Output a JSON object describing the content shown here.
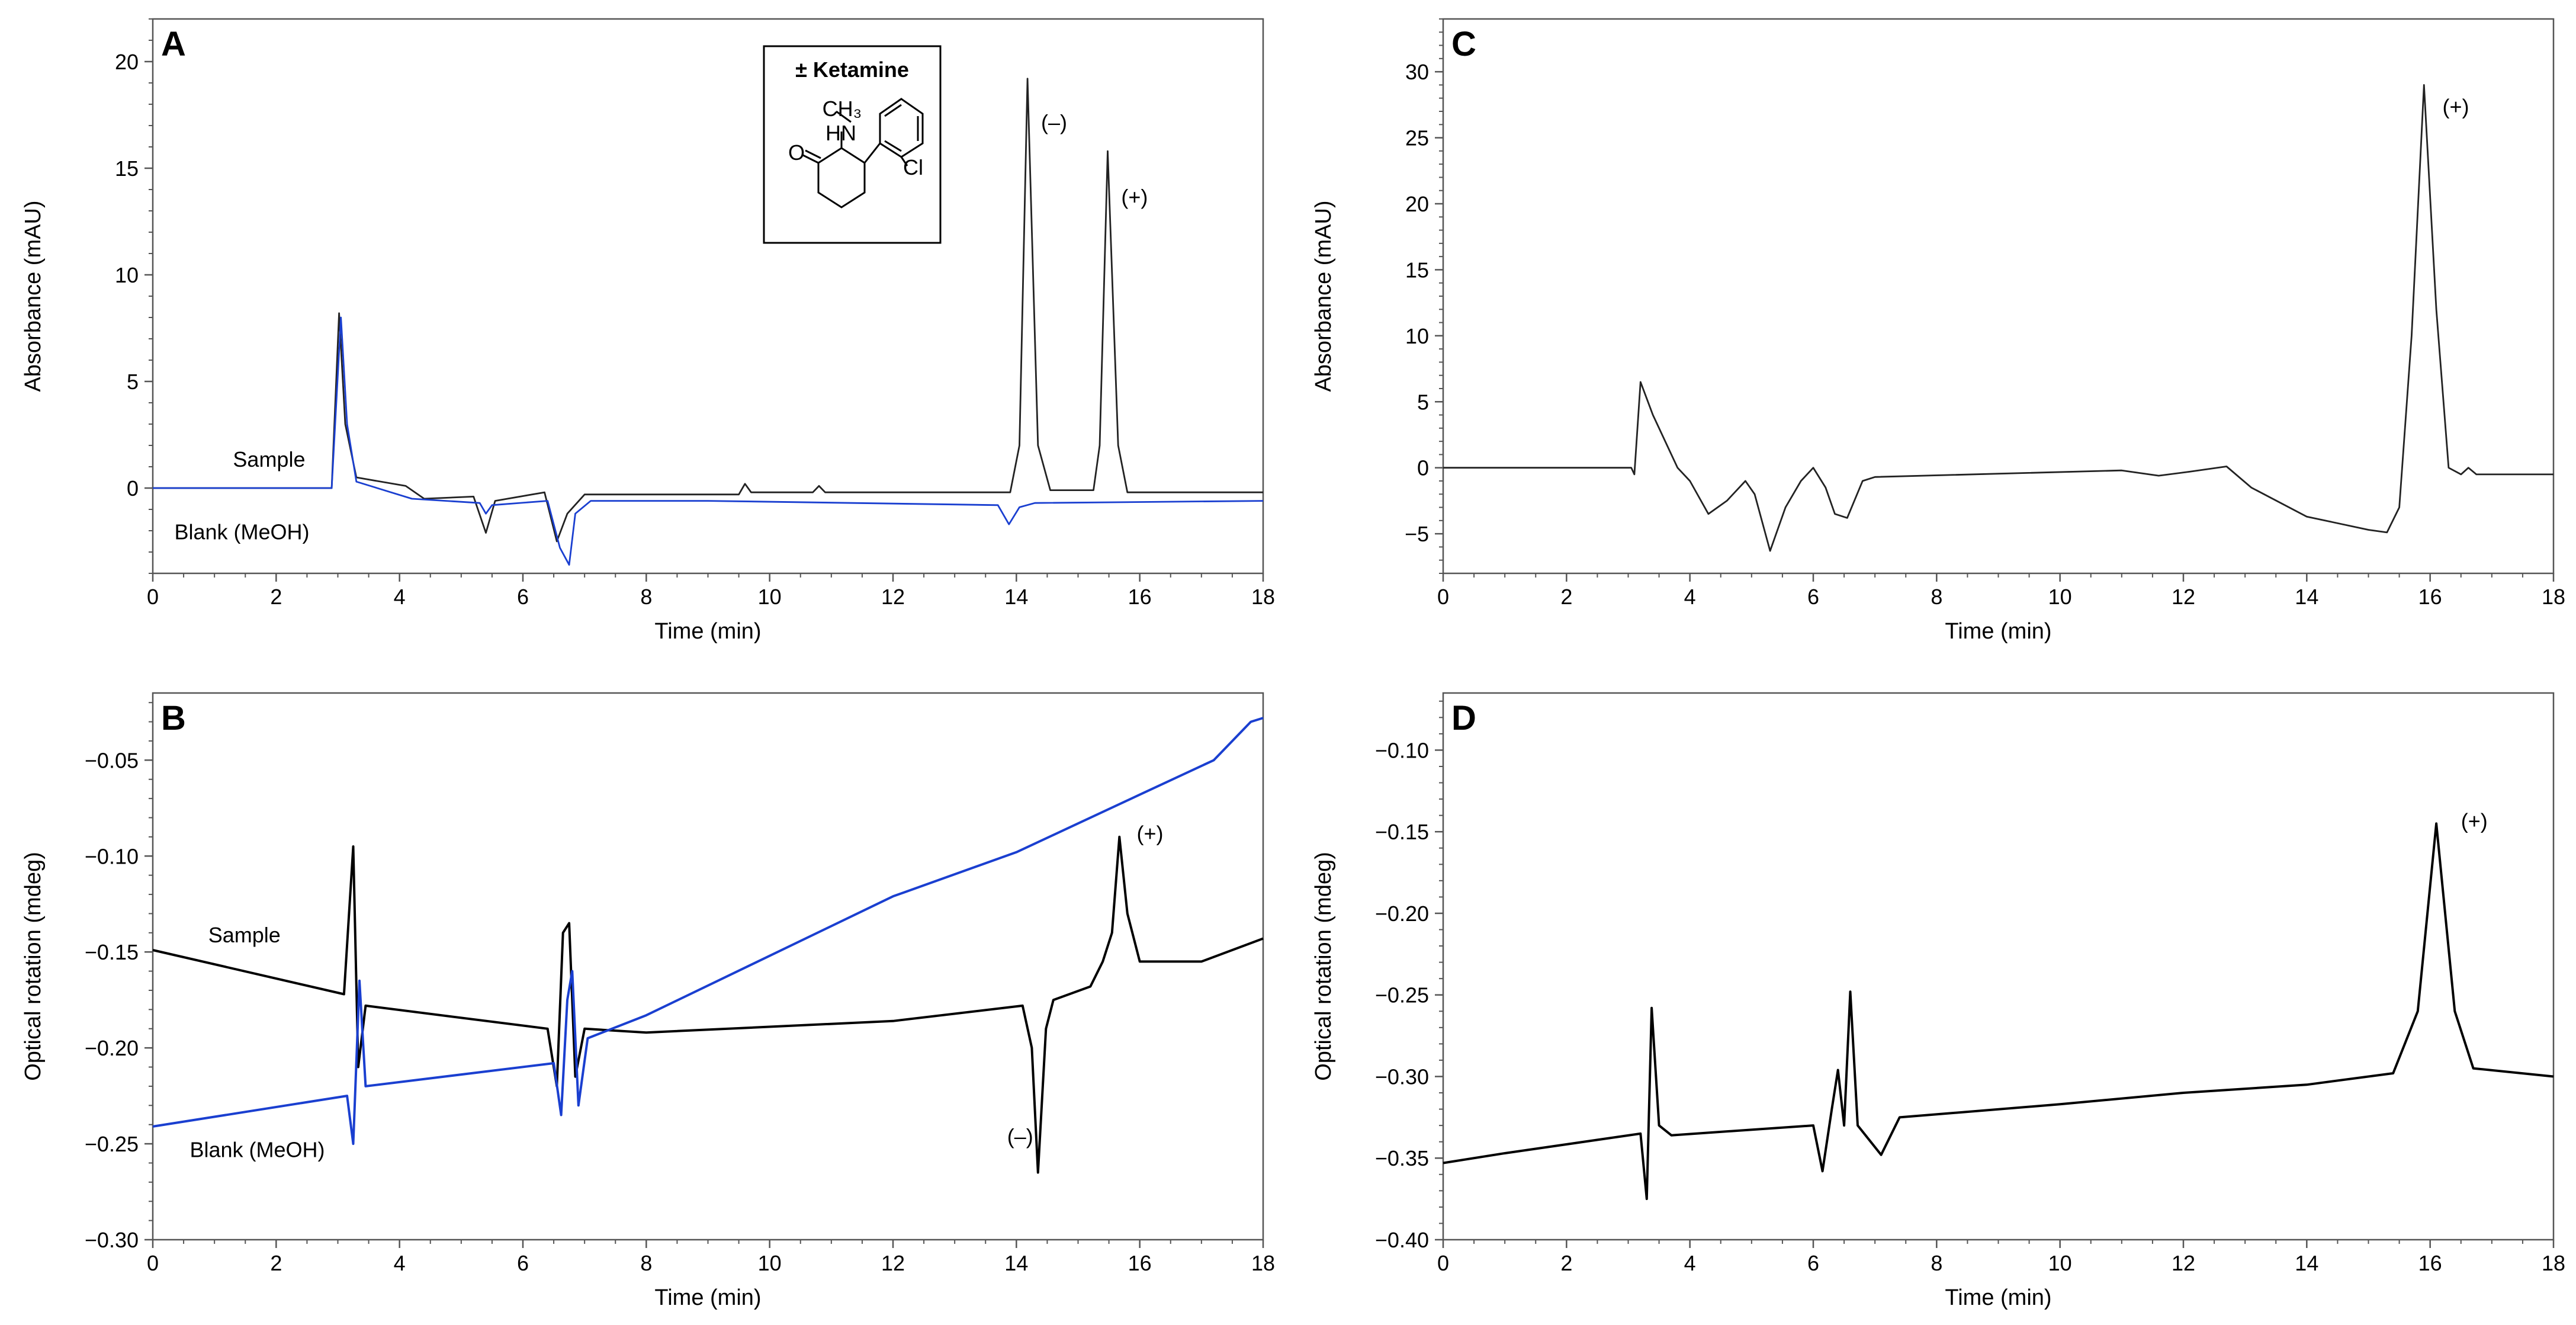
{
  "chart_data": [
    {
      "id": "A",
      "type": "line",
      "panel_label": "A",
      "xlabel": "Time (min)",
      "ylabel": "Absorbance (mAU)",
      "xlim": [
        0,
        18
      ],
      "ylim": [
        -4,
        22
      ],
      "xticks": [
        0,
        2,
        4,
        6,
        8,
        10,
        12,
        14,
        16,
        18
      ],
      "yticks": [
        0,
        5,
        10,
        15,
        20
      ],
      "series": [
        {
          "name": "Sample",
          "color": "#222222",
          "points": [
            [
              0,
              0
            ],
            [
              2.9,
              0
            ],
            [
              3.02,
              8.2
            ],
            [
              3.12,
              3
            ],
            [
              3.3,
              0.5
            ],
            [
              4.1,
              0.1
            ],
            [
              4.4,
              -0.5
            ],
            [
              5.2,
              -0.4
            ],
            [
              5.4,
              -2.1
            ],
            [
              5.55,
              -0.6
            ],
            [
              6.35,
              -0.2
            ],
            [
              6.55,
              -2.5
            ],
            [
              6.72,
              -1.2
            ],
            [
              7.0,
              -0.3
            ],
            [
              9.5,
              -0.3
            ],
            [
              9.6,
              0.2
            ],
            [
              9.7,
              -0.2
            ],
            [
              10.7,
              -0.2
            ],
            [
              10.8,
              0.1
            ],
            [
              10.9,
              -0.2
            ],
            [
              13.9,
              -0.2
            ],
            [
              14.05,
              2
            ],
            [
              14.18,
              19.2
            ],
            [
              14.35,
              2
            ],
            [
              14.55,
              -0.1
            ],
            [
              15.25,
              -0.1
            ],
            [
              15.35,
              2
            ],
            [
              15.48,
              15.8
            ],
            [
              15.65,
              2
            ],
            [
              15.8,
              -0.2
            ],
            [
              18,
              -0.2
            ]
          ]
        },
        {
          "name": "Blank (MeOH)",
          "color": "#1a3fd0",
          "points": [
            [
              0,
              0
            ],
            [
              2.9,
              0
            ],
            [
              3.05,
              8
            ],
            [
              3.15,
              3
            ],
            [
              3.3,
              0.3
            ],
            [
              4.2,
              -0.5
            ],
            [
              5.3,
              -0.7
            ],
            [
              5.4,
              -1.2
            ],
            [
              5.5,
              -0.8
            ],
            [
              6.4,
              -0.6
            ],
            [
              6.6,
              -2.8
            ],
            [
              6.75,
              -3.6
            ],
            [
              6.85,
              -1.2
            ],
            [
              7.1,
              -0.6
            ],
            [
              9,
              -0.6
            ],
            [
              13.7,
              -0.8
            ],
            [
              13.88,
              -1.7
            ],
            [
              14.05,
              -0.9
            ],
            [
              14.3,
              -0.7
            ],
            [
              18,
              -0.6
            ]
          ]
        }
      ],
      "annotations": [
        {
          "text": "Sample",
          "x": 1.3,
          "y": 1.0
        },
        {
          "text": "Blank (MeOH)",
          "x": 0.35,
          "y": -2.4
        },
        {
          "text": "(–)",
          "x": 14.4,
          "y": 16.8
        },
        {
          "text": "(+)",
          "x": 15.7,
          "y": 13.3
        }
      ],
      "inset_title": "± Ketamine",
      "structure_labels": [
        "HN",
        "CH₃",
        "Cl",
        "O"
      ]
    },
    {
      "id": "B",
      "type": "line",
      "panel_label": "B",
      "xlabel": "Time (min)",
      "ylabel": "Optical rotation (mdeg)",
      "xlim": [
        0,
        18
      ],
      "ylim": [
        -0.3,
        -0.015
      ],
      "xticks": [
        0,
        2,
        4,
        6,
        8,
        10,
        12,
        14,
        16,
        18
      ],
      "yticks": [
        -0.3,
        -0.25,
        -0.2,
        -0.15,
        -0.1,
        -0.05
      ],
      "series": [
        {
          "name": "Sample",
          "color": "#000000",
          "points": [
            [
              0,
              -0.149
            ],
            [
              3.1,
              -0.172
            ],
            [
              3.25,
              -0.095
            ],
            [
              3.33,
              -0.21
            ],
            [
              3.45,
              -0.178
            ],
            [
              6.4,
              -0.19
            ],
            [
              6.55,
              -0.22
            ],
            [
              6.65,
              -0.14
            ],
            [
              6.75,
              -0.135
            ],
            [
              6.85,
              -0.215
            ],
            [
              7.0,
              -0.19
            ],
            [
              8,
              -0.192
            ],
            [
              12,
              -0.186
            ],
            [
              14.1,
              -0.178
            ],
            [
              14.25,
              -0.2
            ],
            [
              14.35,
              -0.265
            ],
            [
              14.48,
              -0.19
            ],
            [
              14.6,
              -0.175
            ],
            [
              15.2,
              -0.168
            ],
            [
              15.4,
              -0.155
            ],
            [
              15.55,
              -0.14
            ],
            [
              15.67,
              -0.09
            ],
            [
              15.8,
              -0.13
            ],
            [
              16.0,
              -0.155
            ],
            [
              17,
              -0.155
            ],
            [
              18,
              -0.143
            ]
          ]
        },
        {
          "name": "Blank (MeOH)",
          "color": "#1a3fd0",
          "points": [
            [
              0,
              -0.241
            ],
            [
              3.15,
              -0.225
            ],
            [
              3.25,
              -0.25
            ],
            [
              3.35,
              -0.165
            ],
            [
              3.45,
              -0.22
            ],
            [
              6.5,
              -0.208
            ],
            [
              6.62,
              -0.235
            ],
            [
              6.72,
              -0.175
            ],
            [
              6.8,
              -0.16
            ],
            [
              6.9,
              -0.23
            ],
            [
              7.05,
              -0.195
            ],
            [
              8,
              -0.183
            ],
            [
              10,
              -0.152
            ],
            [
              12,
              -0.121
            ],
            [
              14,
              -0.098
            ],
            [
              16,
              -0.068
            ],
            [
              17.2,
              -0.05
            ],
            [
              17.8,
              -0.03
            ],
            [
              18,
              -0.028
            ]
          ]
        }
      ],
      "annotations": [
        {
          "text": "Sample",
          "x": 0.9,
          "y": -0.145
        },
        {
          "text": "Blank (MeOH)",
          "x": 0.6,
          "y": -0.257
        },
        {
          "text": "(–)",
          "x": 13.85,
          "y": -0.25
        },
        {
          "text": "(+)",
          "x": 15.95,
          "y": -0.092
        }
      ]
    },
    {
      "id": "C",
      "type": "line",
      "panel_label": "C",
      "xlabel": "Time (min)",
      "ylabel": "Absorbance (mAU)",
      "xlim": [
        0,
        18
      ],
      "ylim": [
        -8,
        34
      ],
      "xticks": [
        0,
        2,
        4,
        6,
        8,
        10,
        12,
        14,
        16,
        18
      ],
      "yticks": [
        -5,
        0,
        5,
        10,
        15,
        20,
        25,
        30
      ],
      "series": [
        {
          "name": "Sample",
          "color": "#222222",
          "points": [
            [
              0,
              0
            ],
            [
              3.05,
              0
            ],
            [
              3.1,
              -0.5
            ],
            [
              3.2,
              6.5
            ],
            [
              3.4,
              4
            ],
            [
              3.8,
              0
            ],
            [
              4.0,
              -1
            ],
            [
              4.3,
              -3.5
            ],
            [
              4.6,
              -2.5
            ],
            [
              4.9,
              -1
            ],
            [
              5.05,
              -2
            ],
            [
              5.3,
              -6.3
            ],
            [
              5.55,
              -3
            ],
            [
              5.8,
              -1
            ],
            [
              6.0,
              0
            ],
            [
              6.2,
              -1.5
            ],
            [
              6.35,
              -3.5
            ],
            [
              6.55,
              -3.8
            ],
            [
              6.8,
              -1
            ],
            [
              7.0,
              -0.7
            ],
            [
              11.0,
              -0.2
            ],
            [
              11.6,
              -0.6
            ],
            [
              12.1,
              -0.3
            ],
            [
              12.7,
              0.1
            ],
            [
              13.1,
              -1.5
            ],
            [
              14,
              -3.7
            ],
            [
              15,
              -4.7
            ],
            [
              15.3,
              -4.9
            ],
            [
              15.5,
              -3
            ],
            [
              15.7,
              10
            ],
            [
              15.9,
              29
            ],
            [
              16.1,
              12
            ],
            [
              16.3,
              0
            ],
            [
              16.5,
              -0.5
            ],
            [
              16.62,
              0
            ],
            [
              16.75,
              -0.5
            ],
            [
              18,
              -0.5
            ]
          ]
        }
      ],
      "annotations": [
        {
          "text": "(+)",
          "x": 16.2,
          "y": 26.8
        }
      ]
    },
    {
      "id": "D",
      "type": "line",
      "panel_label": "D",
      "xlabel": "Time (min)",
      "ylabel": "Optical rotation (mdeg)",
      "xlim": [
        0,
        18
      ],
      "ylim": [
        -0.4,
        -0.065
      ],
      "xticks": [
        0,
        2,
        4,
        6,
        8,
        10,
        12,
        14,
        16,
        18
      ],
      "yticks": [
        -0.4,
        -0.35,
        -0.3,
        -0.25,
        -0.2,
        -0.15,
        -0.1
      ],
      "series": [
        {
          "name": "Sample",
          "color": "#000000",
          "points": [
            [
              0,
              -0.353
            ],
            [
              1,
              -0.347
            ],
            [
              3.2,
              -0.335
            ],
            [
              3.3,
              -0.375
            ],
            [
              3.38,
              -0.258
            ],
            [
              3.5,
              -0.33
            ],
            [
              3.7,
              -0.336
            ],
            [
              6.0,
              -0.33
            ],
            [
              6.15,
              -0.358
            ],
            [
              6.3,
              -0.32
            ],
            [
              6.4,
              -0.296
            ],
            [
              6.5,
              -0.33
            ],
            [
              6.6,
              -0.248
            ],
            [
              6.72,
              -0.33
            ],
            [
              7.1,
              -0.348
            ],
            [
              7.4,
              -0.325
            ],
            [
              10,
              -0.317
            ],
            [
              12,
              -0.31
            ],
            [
              14,
              -0.305
            ],
            [
              15.4,
              -0.298
            ],
            [
              15.8,
              -0.26
            ],
            [
              16.1,
              -0.145
            ],
            [
              16.4,
              -0.26
            ],
            [
              16.7,
              -0.295
            ],
            [
              18,
              -0.3
            ]
          ]
        }
      ],
      "annotations": [
        {
          "text": "(+)",
          "x": 16.5,
          "y": -0.148
        }
      ]
    }
  ]
}
